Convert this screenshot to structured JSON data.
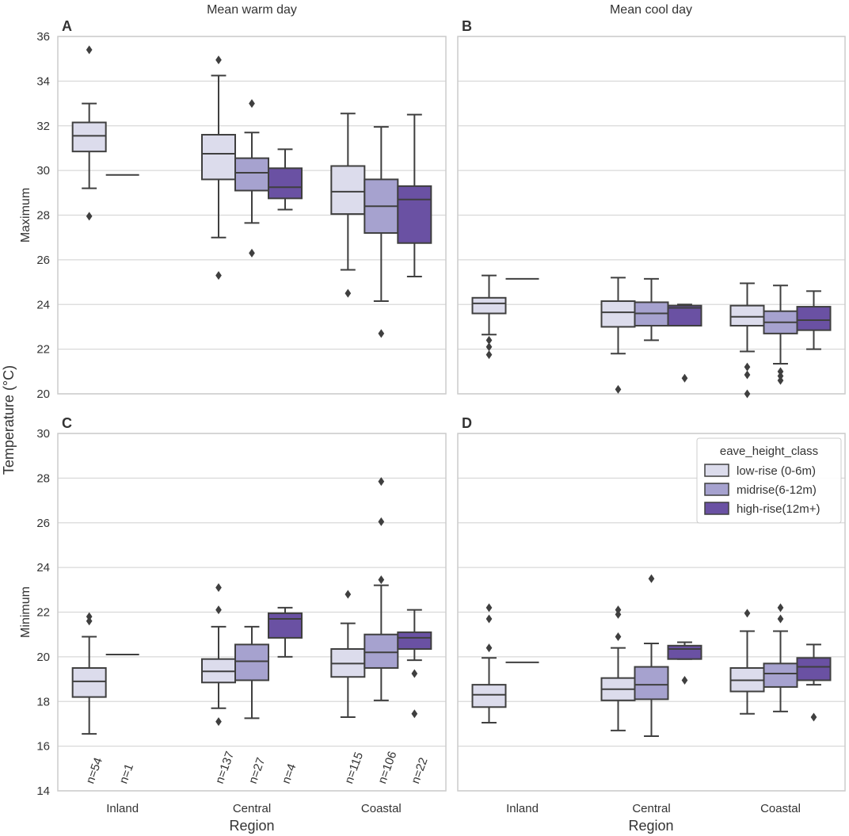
{
  "figure": {
    "col_titles": [
      "Mean warm day",
      "Mean cool day"
    ],
    "shared_ylabel": "Temperature (°C)",
    "xlabel": "Region"
  },
  "legend": {
    "title": "eave_height_class",
    "entries": [
      "low-rise (0-6m)",
      "midrise(6-12m)",
      "high-rise(12m+)"
    ]
  },
  "colors": {
    "low": "#dcdcec",
    "mid": "#a6a2cf",
    "high": "#6a51a3",
    "box_edge": "#3f3f3f",
    "grid": "#d9d9d9",
    "frame": "#cccccc"
  },
  "chart_data": [
    {
      "id": "A",
      "type": "box",
      "row_label": "Maximum",
      "col_title": "Mean warm day",
      "categories": [
        "Inland",
        "Central",
        "Coastal"
      ],
      "ylim": [
        20,
        36
      ],
      "yticks": [
        20,
        22,
        24,
        26,
        28,
        30,
        32,
        34,
        36
      ],
      "boxes": [
        {
          "region": "Inland",
          "cls": "low",
          "wl": 29.2,
          "q1": 30.85,
          "med": 31.55,
          "q3": 32.15,
          "wh": 33.0,
          "outliers": [
            35.4,
            27.95
          ]
        },
        {
          "region": "Inland",
          "cls": "mid",
          "wl": 29.8,
          "q1": 29.8,
          "med": 29.8,
          "q3": 29.8,
          "wh": 29.8,
          "outliers": []
        },
        {
          "region": "Central",
          "cls": "low",
          "wl": 27.0,
          "q1": 29.6,
          "med": 30.75,
          "q3": 31.6,
          "wh": 34.25,
          "outliers": [
            34.95,
            25.3
          ]
        },
        {
          "region": "Central",
          "cls": "mid",
          "wl": 27.65,
          "q1": 29.1,
          "med": 29.9,
          "q3": 30.55,
          "wh": 31.7,
          "outliers": [
            33.0,
            26.3
          ]
        },
        {
          "region": "Central",
          "cls": "high",
          "wl": 28.25,
          "q1": 28.75,
          "med": 29.25,
          "q3": 30.1,
          "wh": 30.95,
          "outliers": []
        },
        {
          "region": "Coastal",
          "cls": "low",
          "wl": 25.55,
          "q1": 28.05,
          "med": 29.05,
          "q3": 30.2,
          "wh": 32.55,
          "outliers": [
            24.5
          ]
        },
        {
          "region": "Coastal",
          "cls": "mid",
          "wl": 24.15,
          "q1": 27.2,
          "med": 28.4,
          "q3": 29.6,
          "wh": 31.95,
          "outliers": [
            22.7
          ]
        },
        {
          "region": "Coastal",
          "cls": "high",
          "wl": 25.25,
          "q1": 26.75,
          "med": 28.7,
          "q3": 29.3,
          "wh": 32.5,
          "outliers": []
        }
      ]
    },
    {
      "id": "B",
      "type": "box",
      "row_label": "",
      "col_title": "Mean cool day",
      "categories": [
        "Inland",
        "Central",
        "Coastal"
      ],
      "ylim": [
        20,
        36
      ],
      "yticks": [],
      "boxes": [
        {
          "region": "Inland",
          "cls": "low",
          "wl": 22.65,
          "q1": 23.6,
          "med": 24.05,
          "q3": 24.3,
          "wh": 25.3,
          "outliers": [
            22.4,
            22.1,
            21.75
          ]
        },
        {
          "region": "Inland",
          "cls": "mid",
          "wl": 25.15,
          "q1": 25.15,
          "med": 25.15,
          "q3": 25.15,
          "wh": 25.15,
          "outliers": []
        },
        {
          "region": "Central",
          "cls": "low",
          "wl": 21.8,
          "q1": 23.0,
          "med": 23.65,
          "q3": 24.15,
          "wh": 25.2,
          "outliers": [
            20.2
          ]
        },
        {
          "region": "Central",
          "cls": "mid",
          "wl": 22.4,
          "q1": 23.05,
          "med": 23.6,
          "q3": 24.1,
          "wh": 25.15,
          "outliers": []
        },
        {
          "region": "Central",
          "cls": "high",
          "wl": 23.05,
          "q1": 23.05,
          "med": 23.85,
          "q3": 23.95,
          "wh": 24.0,
          "outliers": [
            20.7
          ]
        },
        {
          "region": "Coastal",
          "cls": "low",
          "wl": 21.9,
          "q1": 23.05,
          "med": 23.45,
          "q3": 23.95,
          "wh": 24.95,
          "outliers": [
            21.2,
            20.85,
            20.0
          ]
        },
        {
          "region": "Coastal",
          "cls": "mid",
          "wl": 21.35,
          "q1": 22.7,
          "med": 23.2,
          "q3": 23.7,
          "wh": 24.85,
          "outliers": [
            21.0,
            20.8,
            20.6
          ]
        },
        {
          "region": "Coastal",
          "cls": "high",
          "wl": 22.0,
          "q1": 22.85,
          "med": 23.3,
          "q3": 23.9,
          "wh": 24.6,
          "outliers": []
        }
      ]
    },
    {
      "id": "C",
      "type": "box",
      "row_label": "Minimum",
      "col_title": "",
      "categories": [
        "Inland",
        "Central",
        "Coastal"
      ],
      "ylim": [
        14,
        30
      ],
      "yticks": [
        14,
        16,
        18,
        20,
        22,
        24,
        26,
        28,
        30
      ],
      "counts": [
        "n=54",
        "n=1",
        "n=137",
        "n=27",
        "n=4",
        "n=115",
        "n=106",
        "n=22"
      ],
      "boxes": [
        {
          "region": "Inland",
          "cls": "low",
          "wl": 16.55,
          "q1": 18.2,
          "med": 18.9,
          "q3": 19.5,
          "wh": 20.9,
          "outliers": [
            21.8,
            21.6
          ]
        },
        {
          "region": "Inland",
          "cls": "mid",
          "wl": 20.1,
          "q1": 20.1,
          "med": 20.1,
          "q3": 20.1,
          "wh": 20.1,
          "outliers": []
        },
        {
          "region": "Central",
          "cls": "low",
          "wl": 17.7,
          "q1": 18.85,
          "med": 19.35,
          "q3": 19.9,
          "wh": 21.35,
          "outliers": [
            23.1,
            22.1,
            17.1
          ]
        },
        {
          "region": "Central",
          "cls": "mid",
          "wl": 17.25,
          "q1": 18.95,
          "med": 19.8,
          "q3": 20.55,
          "wh": 21.35,
          "outliers": []
        },
        {
          "region": "Central",
          "cls": "high",
          "wl": 20.0,
          "q1": 20.85,
          "med": 21.7,
          "q3": 21.95,
          "wh": 22.2,
          "outliers": []
        },
        {
          "region": "Coastal",
          "cls": "low",
          "wl": 17.3,
          "q1": 19.1,
          "med": 19.7,
          "q3": 20.35,
          "wh": 21.5,
          "outliers": [
            22.8
          ]
        },
        {
          "region": "Coastal",
          "cls": "mid",
          "wl": 18.05,
          "q1": 19.5,
          "med": 20.2,
          "q3": 21.0,
          "wh": 23.2,
          "outliers": [
            27.85,
            26.05,
            23.45
          ]
        },
        {
          "region": "Coastal",
          "cls": "high",
          "wl": 19.85,
          "q1": 20.35,
          "med": 20.85,
          "q3": 21.1,
          "wh": 22.1,
          "outliers": [
            19.25,
            17.45
          ]
        }
      ]
    },
    {
      "id": "D",
      "type": "box",
      "row_label": "",
      "col_title": "",
      "categories": [
        "Inland",
        "Central",
        "Coastal"
      ],
      "ylim": [
        14,
        30
      ],
      "yticks": [],
      "boxes": [
        {
          "region": "Inland",
          "cls": "low",
          "wl": 17.05,
          "q1": 17.75,
          "med": 18.3,
          "q3": 18.75,
          "wh": 19.95,
          "outliers": [
            22.2,
            21.7,
            20.4
          ]
        },
        {
          "region": "Inland",
          "cls": "mid",
          "wl": 19.75,
          "q1": 19.75,
          "med": 19.75,
          "q3": 19.75,
          "wh": 19.75,
          "outliers": []
        },
        {
          "region": "Central",
          "cls": "low",
          "wl": 16.7,
          "q1": 18.05,
          "med": 18.55,
          "q3": 19.05,
          "wh": 20.4,
          "outliers": [
            22.1,
            21.9,
            20.9
          ]
        },
        {
          "region": "Central",
          "cls": "mid",
          "wl": 16.45,
          "q1": 18.1,
          "med": 18.75,
          "q3": 19.55,
          "wh": 20.6,
          "outliers": [
            23.5
          ]
        },
        {
          "region": "Central",
          "cls": "high",
          "wl": 19.9,
          "q1": 19.9,
          "med": 20.35,
          "q3": 20.5,
          "wh": 20.65,
          "outliers": [
            18.95
          ]
        },
        {
          "region": "Coastal",
          "cls": "low",
          "wl": 17.45,
          "q1": 18.45,
          "med": 18.95,
          "q3": 19.5,
          "wh": 21.15,
          "outliers": [
            21.95
          ]
        },
        {
          "region": "Coastal",
          "cls": "mid",
          "wl": 17.55,
          "q1": 18.65,
          "med": 19.25,
          "q3": 19.7,
          "wh": 21.15,
          "outliers": [
            22.2,
            21.7
          ]
        },
        {
          "region": "Coastal",
          "cls": "high",
          "wl": 18.75,
          "q1": 18.95,
          "med": 19.55,
          "q3": 19.95,
          "wh": 20.55,
          "outliers": [
            17.3
          ]
        }
      ]
    }
  ]
}
